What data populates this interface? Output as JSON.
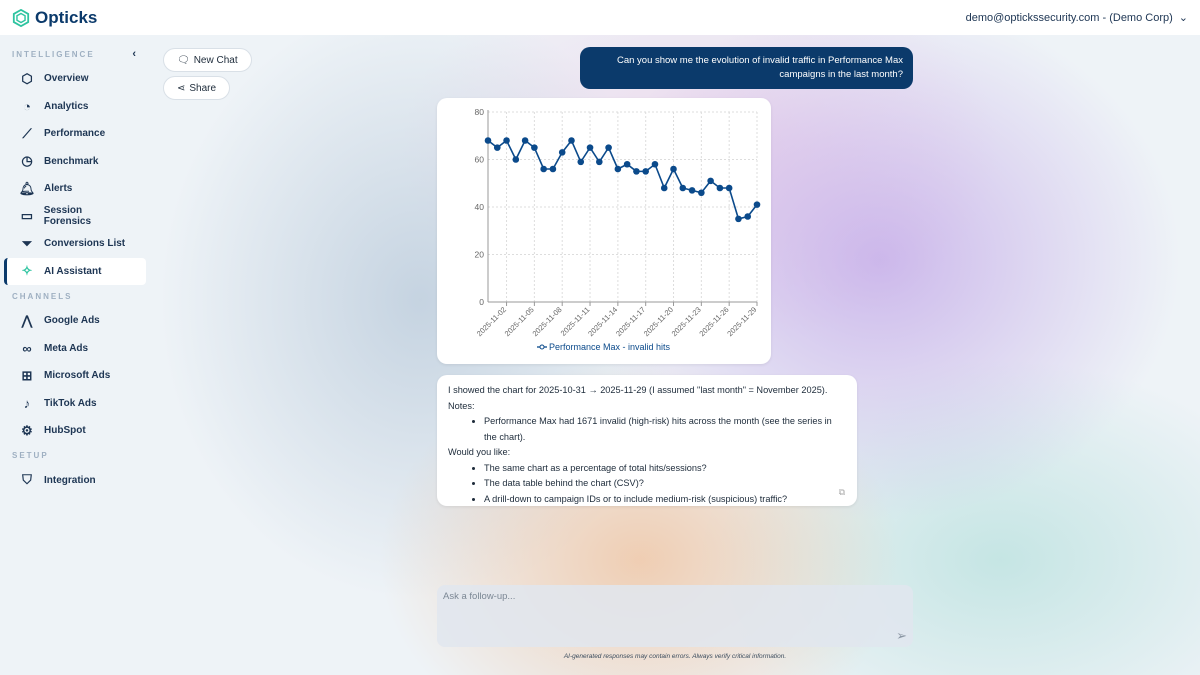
{
  "header": {
    "brand": "Opticks",
    "user": "demo@optickssecurity.com - (Demo Corp)"
  },
  "sidebar": {
    "sections": [
      {
        "title": "INTELLIGENCE",
        "items": [
          {
            "label": "Overview",
            "icon": "overview-icon"
          },
          {
            "label": "Analytics",
            "icon": "analytics-icon"
          },
          {
            "label": "Performance",
            "icon": "performance-icon"
          },
          {
            "label": "Benchmark",
            "icon": "gauge-icon"
          },
          {
            "label": "Alerts",
            "icon": "bell-icon"
          },
          {
            "label": "Session Forensics",
            "icon": "monitor-icon"
          },
          {
            "label": "Conversions List",
            "icon": "funnel-icon"
          },
          {
            "label": "AI Assistant",
            "icon": "sparkle-icon",
            "active": true
          }
        ]
      },
      {
        "title": "CHANNELS",
        "items": [
          {
            "label": "Google Ads",
            "icon": "google-ads-icon"
          },
          {
            "label": "Meta Ads",
            "icon": "meta-icon"
          },
          {
            "label": "Microsoft Ads",
            "icon": "microsoft-icon"
          },
          {
            "label": "TikTok Ads",
            "icon": "tiktok-icon"
          },
          {
            "label": "HubSpot",
            "icon": "hubspot-icon"
          }
        ]
      },
      {
        "title": "SETUP",
        "items": [
          {
            "label": "Integration",
            "icon": "js-shield-icon"
          }
        ]
      }
    ]
  },
  "actions": {
    "new_chat": "New Chat",
    "share": "Share"
  },
  "chat": {
    "user_message": "Can you show me the evolution of invalid traffic in Performance Max campaigns in the last month?",
    "reply": {
      "intro": "I showed the chart for 2025-10-31 → 2025-11-29 (I assumed \"last month\" = November 2025).",
      "notes_label": "Notes:",
      "notes": [
        "Performance Max had 1671 invalid (high-risk) hits across the month (see the series in the chart)."
      ],
      "question": "Would you like:",
      "options": [
        "The same chart as a percentage of total hits/sessions?",
        "The data table behind the chart (CSV)?",
        "A drill-down to campaign IDs or to include medium-risk (suspicious) traffic?"
      ]
    }
  },
  "input": {
    "placeholder": "Ask a follow-up..."
  },
  "disclaimer": "AI-generated responses may contain errors. Always verify critical information.",
  "colors": {
    "brand": "#0b3a6b",
    "accent": "#2ec4a0"
  },
  "chart_data": {
    "type": "line",
    "x": [
      "2025-10-31",
      "2025-11-01",
      "2025-11-02",
      "2025-11-03",
      "2025-11-04",
      "2025-11-05",
      "2025-11-06",
      "2025-11-07",
      "2025-11-08",
      "2025-11-09",
      "2025-11-10",
      "2025-11-11",
      "2025-11-12",
      "2025-11-13",
      "2025-11-14",
      "2025-11-15",
      "2025-11-16",
      "2025-11-17",
      "2025-11-18",
      "2025-11-19",
      "2025-11-20",
      "2025-11-21",
      "2025-11-22",
      "2025-11-23",
      "2025-11-24",
      "2025-11-25",
      "2025-11-26",
      "2025-11-27",
      "2025-11-28",
      "2025-11-29"
    ],
    "xticks": [
      "2025-11-02",
      "2025-11-05",
      "2025-11-08",
      "2025-11-11",
      "2025-11-14",
      "2025-11-17",
      "2025-11-20",
      "2025-11-23",
      "2025-11-26",
      "2025-11-29"
    ],
    "yticks": [
      0,
      20,
      40,
      60,
      80
    ],
    "ylim": [
      0,
      80
    ],
    "grid": true,
    "legend": "bottom",
    "series": [
      {
        "name": "Performance Max - invalid hits",
        "color": "#0b4a8b",
        "values": [
          68,
          65,
          68,
          60,
          68,
          65,
          56,
          56,
          63,
          68,
          59,
          65,
          59,
          65,
          56,
          58,
          55,
          55,
          58,
          48,
          56,
          48,
          47,
          46,
          51,
          48,
          48,
          35,
          36,
          41
        ]
      }
    ]
  }
}
